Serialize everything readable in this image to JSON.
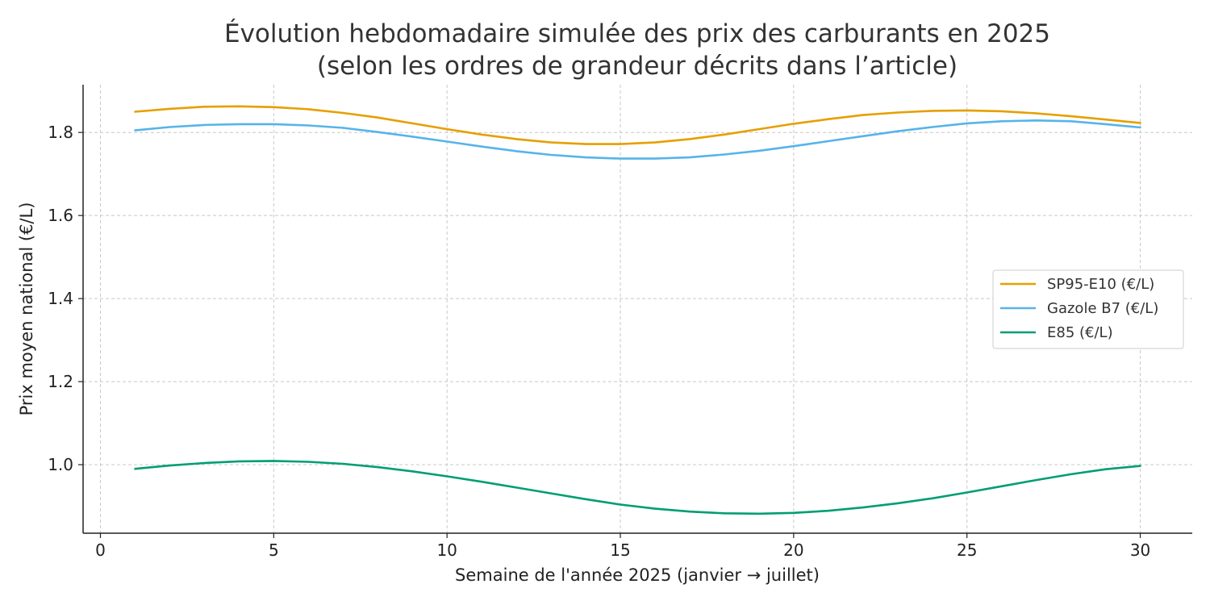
{
  "chart_data": {
    "type": "line",
    "title": [
      "Évolution hebdomadaire simulée des prix des carburants en 2025",
      "(selon les ordres de grandeur décrits dans l’article)"
    ],
    "xlabel": "Semaine de l'année 2025 (janvier → juillet)",
    "ylabel": "Prix moyen national (€/L)",
    "xlim": [
      -0.5,
      31.5
    ],
    "ylim": [
      0.835,
      1.915
    ],
    "xticks": [
      0,
      5,
      10,
      15,
      20,
      25,
      30
    ],
    "xtick_labels": [
      "0",
      "5",
      "10",
      "15",
      "20",
      "25",
      "30"
    ],
    "yticks": [
      1.0,
      1.2,
      1.4,
      1.6,
      1.8
    ],
    "ytick_labels": [
      "1.0",
      "1.2",
      "1.4",
      "1.6",
      "1.8"
    ],
    "grid": true,
    "legend_position": "center-right",
    "x": [
      1,
      2,
      3,
      4,
      5,
      6,
      7,
      8,
      9,
      10,
      11,
      12,
      13,
      14,
      15,
      16,
      17,
      18,
      19,
      20,
      21,
      22,
      23,
      24,
      25,
      26,
      27,
      28,
      29,
      30
    ],
    "series": [
      {
        "name": "SP95-E10 (€/L)",
        "color": "#E69F00",
        "values": [
          1.85,
          1.857,
          1.862,
          1.863,
          1.861,
          1.856,
          1.847,
          1.836,
          1.822,
          1.808,
          1.795,
          1.784,
          1.776,
          1.772,
          1.772,
          1.776,
          1.784,
          1.795,
          1.808,
          1.821,
          1.832,
          1.842,
          1.848,
          1.852,
          1.853,
          1.851,
          1.846,
          1.839,
          1.831,
          1.823
        ]
      },
      {
        "name": "Gazole B7 (€/L)",
        "color": "#56B4E9",
        "values": [
          1.805,
          1.813,
          1.818,
          1.82,
          1.82,
          1.817,
          1.811,
          1.801,
          1.79,
          1.778,
          1.766,
          1.755,
          1.746,
          1.74,
          1.737,
          1.737,
          1.74,
          1.747,
          1.756,
          1.767,
          1.779,
          1.791,
          1.803,
          1.813,
          1.822,
          1.827,
          1.829,
          1.827,
          1.82,
          1.812
        ]
      },
      {
        "name": "E85 (€/L)",
        "color": "#009E73",
        "values": [
          0.99,
          0.998,
          1.004,
          1.008,
          1.009,
          1.007,
          1.002,
          0.994,
          0.984,
          0.972,
          0.959,
          0.945,
          0.931,
          0.917,
          0.904,
          0.894,
          0.887,
          0.883,
          0.882,
          0.884,
          0.889,
          0.897,
          0.907,
          0.919,
          0.933,
          0.948,
          0.963,
          0.977,
          0.989,
          0.997
        ]
      }
    ]
  }
}
